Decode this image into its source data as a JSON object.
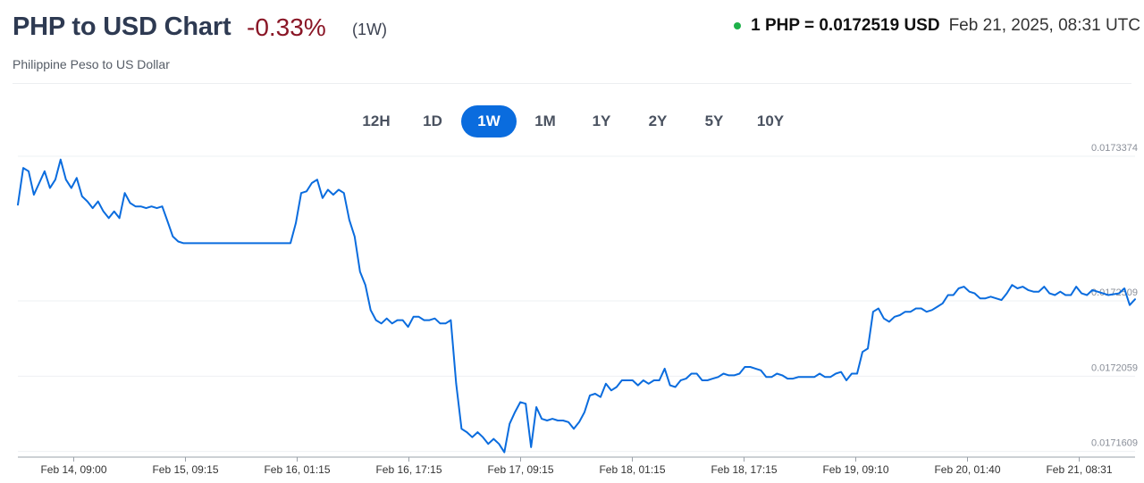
{
  "header": {
    "title": "PHP to USD Chart",
    "change": "-0.33%",
    "period": "(1W)",
    "rate": "1 PHP = 0.0172519 USD",
    "timestamp": "Feb 21, 2025, 08:31 UTC",
    "subtitle": "Philippine Peso to US Dollar"
  },
  "ranges": [
    "12H",
    "1D",
    "1W",
    "1M",
    "1Y",
    "2Y",
    "5Y",
    "10Y"
  ],
  "active_range": "1W",
  "colors": {
    "line": "#0a6cde",
    "accent": "#0a6cde",
    "negative": "#8a1626",
    "live": "#1eb14a"
  },
  "chart_data": {
    "type": "line",
    "title": "",
    "xlabel": "",
    "ylabel": "",
    "x_tick_labels": [
      "Feb 14, 09:00",
      "Feb 15, 09:15",
      "Feb 16, 01:15",
      "Feb 16, 17:15",
      "Feb 17, 09:15",
      "Feb 18, 01:15",
      "Feb 18, 17:15",
      "Feb 19, 09:10",
      "Feb 20, 01:40",
      "Feb 21, 08:31"
    ],
    "y_tick_labels": [
      "0.0173374",
      "0.0172509",
      "0.0172059",
      "0.0171609"
    ],
    "y_ticks": [
      0.0173374,
      0.0172509,
      0.0172059,
      0.0171609
    ],
    "ylim": [
      0.0171575,
      0.0173454
    ],
    "y_axis_position": "right",
    "grid": "horizontal",
    "series": [
      {
        "values": [
          0.0173084,
          0.0173304,
          0.0173284,
          0.0173144,
          0.0173214,
          0.0173284,
          0.0173184,
          0.0173234,
          0.0173354,
          0.0173234,
          0.0173184,
          0.0173244,
          0.0173134,
          0.0173104,
          0.0173064,
          0.0173104,
          0.0173044,
          0.0173004,
          0.0173044,
          0.0173004,
          0.0173154,
          0.0173094,
          0.0173074,
          0.0173074,
          0.0173064,
          0.0173074,
          0.0173064,
          0.0173074,
          0.0172984,
          0.0172894,
          0.0172864,
          0.0172854,
          0.0172854,
          0.0172854,
          0.0172854,
          0.0172854,
          0.0172854,
          0.0172854,
          0.0172854,
          0.0172854,
          0.0172854,
          0.0172854,
          0.0172854,
          0.0172854,
          0.0172854,
          0.0172854,
          0.0172854,
          0.0172854,
          0.0172854,
          0.0172854,
          0.0172854,
          0.0172854,
          0.0172974,
          0.0173154,
          0.0173164,
          0.0173214,
          0.0173234,
          0.0173124,
          0.0173174,
          0.0173144,
          0.0173174,
          0.0173154,
          0.0172994,
          0.0172894,
          0.0172684,
          0.0172604,
          0.0172454,
          0.0172394,
          0.0172374,
          0.0172404,
          0.0172374,
          0.0172394,
          0.0172394,
          0.0172354,
          0.0172414,
          0.0172414,
          0.0172394,
          0.0172394,
          0.0172404,
          0.0172374,
          0.0172374,
          0.0172394,
          0.0172014,
          0.0171744,
          0.0171724,
          0.0171694,
          0.0171724,
          0.0171694,
          0.0171654,
          0.0171684,
          0.0171654,
          0.0171604,
          0.0171774,
          0.0171844,
          0.0171904,
          0.0171894,
          0.0171634,
          0.0171874,
          0.0171804,
          0.0171794,
          0.0171804,
          0.0171794,
          0.0171794,
          0.0171784,
          0.0171744,
          0.0171784,
          0.0171844,
          0.0171944,
          0.0171954,
          0.0171934,
          0.0172014,
          0.0171974,
          0.0171994,
          0.0172034,
          0.0172034,
          0.0172034,
          0.0172004,
          0.0172034,
          0.0172014,
          0.0172034,
          0.0172034,
          0.0172104,
          0.0172004,
          0.0171994,
          0.0172034,
          0.0172044,
          0.0172074,
          0.0172074,
          0.0172034,
          0.0172034,
          0.0172044,
          0.0172054,
          0.0172074,
          0.0172064,
          0.0172064,
          0.0172074,
          0.0172114,
          0.0172114,
          0.0172104,
          0.0172094,
          0.0172054,
          0.0172054,
          0.0172074,
          0.0172064,
          0.0172044,
          0.0172044,
          0.0172054,
          0.0172054,
          0.0172054,
          0.0172054,
          0.0172074,
          0.0172054,
          0.0172054,
          0.0172074,
          0.0172084,
          0.0172034,
          0.0172074,
          0.0172074,
          0.0172204,
          0.0172224,
          0.0172444,
          0.0172464,
          0.0172404,
          0.0172384,
          0.0172414,
          0.0172424,
          0.0172444,
          0.0172444,
          0.0172464,
          0.0172464,
          0.0172444,
          0.0172454,
          0.0172474,
          0.0172494,
          0.0172544,
          0.0172544,
          0.0172584,
          0.0172594,
          0.0172564,
          0.0172554,
          0.0172524,
          0.0172524,
          0.0172534,
          0.0172524,
          0.0172514,
          0.0172554,
          0.0172604,
          0.0172584,
          0.0172594,
          0.0172574,
          0.0172564,
          0.0172564,
          0.0172594,
          0.0172554,
          0.0172544,
          0.0172564,
          0.0172544,
          0.0172544,
          0.0172594,
          0.0172554,
          0.0172544,
          0.0172574,
          0.0172564,
          0.0172554,
          0.0172544,
          0.0172549,
          0.0172554,
          0.0172584,
          0.0172484,
          0.0172519
        ]
      }
    ]
  }
}
